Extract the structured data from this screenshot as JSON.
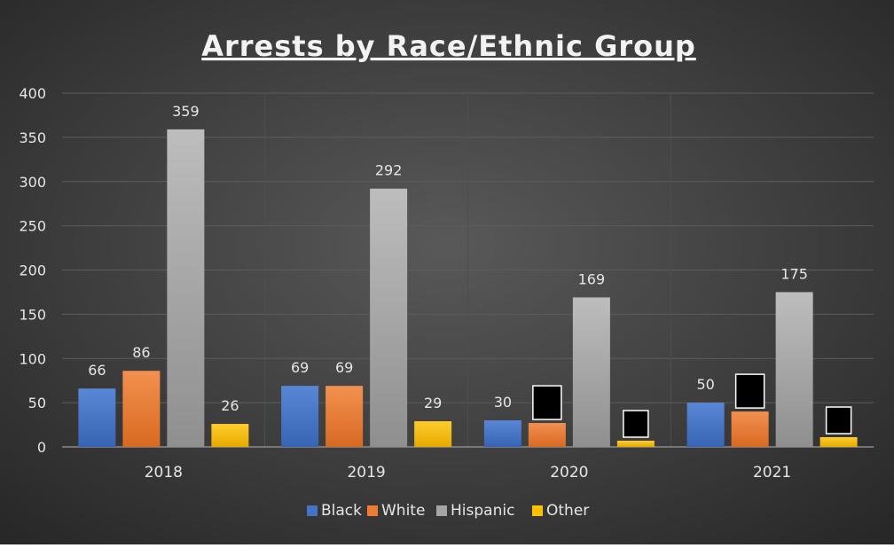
{
  "chart_data": {
    "type": "bar",
    "title": "Arrests by Race/Ethnic Group",
    "xlabel": "",
    "ylabel": "",
    "ylim": [
      0,
      400
    ],
    "yticks": [
      0,
      50,
      100,
      150,
      200,
      250,
      300,
      350,
      400
    ],
    "categories": [
      "2018",
      "2019",
      "2020",
      "2021"
    ],
    "series": [
      {
        "name": "Black",
        "color": "#4472C4",
        "values": [
          66,
          69,
          30,
          50
        ],
        "labels": [
          "66",
          "69",
          "30",
          "50"
        ]
      },
      {
        "name": "White",
        "color": "#ED7D31",
        "values": [
          86,
          69,
          27,
          40
        ],
        "labels": [
          "86",
          "69",
          "",
          ""
        ]
      },
      {
        "name": "Hispanic",
        "color": "#A5A5A5",
        "values": [
          359,
          292,
          169,
          175
        ],
        "labels": [
          "359",
          "292",
          "169",
          "175"
        ]
      },
      {
        "name": "Other",
        "color": "#FFC000",
        "values": [
          26,
          29,
          7,
          11
        ],
        "labels": [
          "26",
          "29",
          "",
          ""
        ]
      }
    ],
    "grid": true,
    "legend_position": "bottom",
    "redacted_labels": [
      [
        2,
        1
      ],
      [
        2,
        3
      ],
      [
        3,
        1
      ],
      [
        3,
        3
      ]
    ]
  }
}
